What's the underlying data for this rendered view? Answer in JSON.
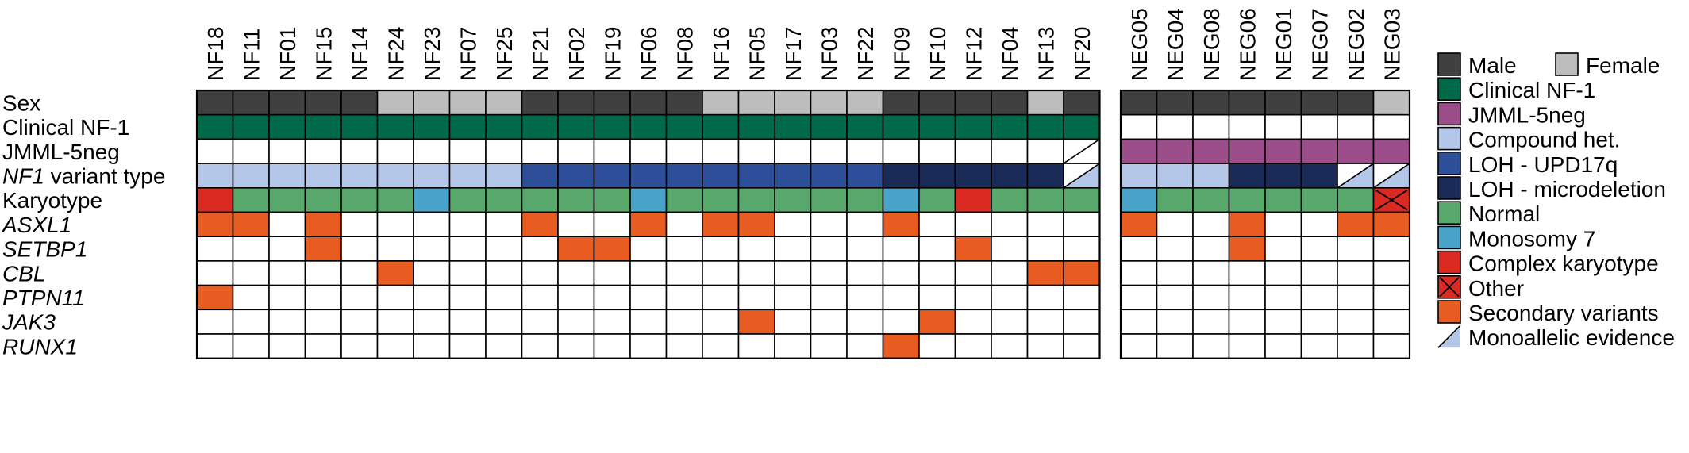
{
  "chart_data": {
    "type": "heatmap",
    "colors": {
      "male": "#404040",
      "female": "#bdbdbd",
      "clinical_nf1": "#006a48",
      "jmml_5neg": "#9c4e8a",
      "compound_het": "#b4c7e9",
      "loh_upd17q": "#2d4f9a",
      "loh_microdeletion": "#1a2b58",
      "normal": "#57a86a",
      "monosomy7": "#4aa3c9",
      "complex_karyotype": "#da2a22",
      "other": "#da2a22",
      "secondary": "#e85c22",
      "empty": "#ffffff"
    },
    "groups": [
      {
        "columns": [
          "NF18",
          "NF11",
          "NF01",
          "NF15",
          "NF14",
          "NF24",
          "NF23",
          "NF07",
          "NF25",
          "NF21",
          "NF02",
          "NF19",
          "NF06",
          "NF08",
          "NF16",
          "NF05",
          "NF17",
          "NF03",
          "NF22",
          "NF09",
          "NF10",
          "NF12",
          "NF04",
          "NF13",
          "NF20"
        ]
      },
      {
        "columns": [
          "NEG05",
          "NEG04",
          "NEG08",
          "NEG06",
          "NEG01",
          "NEG07",
          "NEG02",
          "NEG03"
        ]
      }
    ],
    "rows": [
      {
        "label": "Sex",
        "italic_part": "",
        "rest": "",
        "cells": [
          [
            "male",
            "male",
            "male",
            "male",
            "male",
            "female",
            "female",
            "female",
            "female",
            "male",
            "male",
            "male",
            "male",
            "male",
            "female",
            "female",
            "female",
            "female",
            "female",
            "male",
            "male",
            "male",
            "male",
            "female",
            "male"
          ],
          [
            "male",
            "male",
            "male",
            "male",
            "male",
            "male",
            "male",
            "female"
          ]
        ]
      },
      {
        "label": "Clinical NF-1",
        "italic_part": "",
        "rest": "",
        "cells": [
          [
            "clinical_nf1",
            "clinical_nf1",
            "clinical_nf1",
            "clinical_nf1",
            "clinical_nf1",
            "clinical_nf1",
            "clinical_nf1",
            "clinical_nf1",
            "clinical_nf1",
            "clinical_nf1",
            "clinical_nf1",
            "clinical_nf1",
            "clinical_nf1",
            "clinical_nf1",
            "clinical_nf1",
            "clinical_nf1",
            "clinical_nf1",
            "clinical_nf1",
            "clinical_nf1",
            "clinical_nf1",
            "clinical_nf1",
            "clinical_nf1",
            "clinical_nf1",
            "clinical_nf1",
            "clinical_nf1"
          ],
          [
            "empty",
            "empty",
            "empty",
            "empty",
            "empty",
            "empty",
            "empty",
            "empty"
          ]
        ]
      },
      {
        "label": "JMML-5neg",
        "italic_part": "",
        "rest": "",
        "cells": [
          [
            "empty",
            "empty",
            "empty",
            "empty",
            "empty",
            "empty",
            "empty",
            "empty",
            "empty",
            "empty",
            "empty",
            "empty",
            "empty",
            "empty",
            "empty",
            "empty",
            "empty",
            "empty",
            "empty",
            "empty",
            "empty",
            "empty",
            "empty",
            "empty",
            "empty|monoallelic"
          ],
          [
            "jmml_5neg",
            "jmml_5neg",
            "jmml_5neg",
            "jmml_5neg",
            "jmml_5neg",
            "jmml_5neg",
            "jmml_5neg",
            "jmml_5neg"
          ]
        ]
      },
      {
        "label": "",
        "italic_part": "NF1",
        "rest": " variant type",
        "cells": [
          [
            "compound_het",
            "compound_het",
            "compound_het",
            "compound_het",
            "compound_het",
            "compound_het",
            "compound_het",
            "compound_het",
            "compound_het",
            "loh_upd17q",
            "loh_upd17q",
            "loh_upd17q",
            "loh_upd17q",
            "loh_upd17q",
            "loh_upd17q",
            "loh_upd17q",
            "loh_upd17q",
            "loh_upd17q",
            "loh_upd17q",
            "loh_microdeletion",
            "loh_microdeletion",
            "loh_microdeletion",
            "loh_microdeletion",
            "loh_microdeletion",
            "compound_het|monoallelic"
          ],
          [
            "compound_het",
            "compound_het",
            "compound_het",
            "loh_microdeletion",
            "loh_microdeletion",
            "loh_microdeletion",
            "compound_het|monoallelic",
            "compound_het|monoallelic"
          ]
        ]
      },
      {
        "label": "Karyotype",
        "italic_part": "",
        "rest": "",
        "cells": [
          [
            "complex_karyotype",
            "normal",
            "normal",
            "normal",
            "normal",
            "normal",
            "monosomy7",
            "normal",
            "normal",
            "normal",
            "normal",
            "normal",
            "monosomy7",
            "normal",
            "normal",
            "normal",
            "normal",
            "normal",
            "normal",
            "monosomy7",
            "normal",
            "complex_karyotype",
            "normal",
            "normal",
            "normal"
          ],
          [
            "monosomy7",
            "normal",
            "normal",
            "normal",
            "normal",
            "normal",
            "normal",
            "other"
          ]
        ]
      },
      {
        "label": "",
        "italic_part": "ASXL1",
        "rest": "",
        "cells": [
          [
            "secondary",
            "secondary",
            "empty",
            "secondary",
            "empty",
            "empty",
            "empty",
            "empty",
            "empty",
            "secondary",
            "empty",
            "empty",
            "secondary",
            "empty",
            "secondary",
            "secondary",
            "empty",
            "empty",
            "empty",
            "secondary",
            "empty",
            "empty",
            "empty",
            "empty",
            "empty"
          ],
          [
            "secondary",
            "empty",
            "empty",
            "secondary",
            "empty",
            "empty",
            "secondary",
            "secondary"
          ]
        ]
      },
      {
        "label": "",
        "italic_part": "SETBP1",
        "rest": "",
        "cells": [
          [
            "empty",
            "empty",
            "empty",
            "secondary",
            "empty",
            "empty",
            "empty",
            "empty",
            "empty",
            "empty",
            "secondary",
            "secondary",
            "empty",
            "empty",
            "empty",
            "empty",
            "empty",
            "empty",
            "empty",
            "empty",
            "empty",
            "secondary",
            "empty",
            "empty",
            "empty"
          ],
          [
            "empty",
            "empty",
            "empty",
            "secondary",
            "empty",
            "empty",
            "empty",
            "empty"
          ]
        ]
      },
      {
        "label": "",
        "italic_part": "CBL",
        "rest": "",
        "cells": [
          [
            "empty",
            "empty",
            "empty",
            "empty",
            "empty",
            "secondary",
            "empty",
            "empty",
            "empty",
            "empty",
            "empty",
            "empty",
            "empty",
            "empty",
            "empty",
            "empty",
            "empty",
            "empty",
            "empty",
            "empty",
            "empty",
            "empty",
            "empty",
            "secondary",
            "secondary"
          ],
          [
            "empty",
            "empty",
            "empty",
            "empty",
            "empty",
            "empty",
            "empty",
            "empty"
          ]
        ]
      },
      {
        "label": "",
        "italic_part": "PTPN11",
        "rest": "",
        "cells": [
          [
            "secondary",
            "empty",
            "empty",
            "empty",
            "empty",
            "empty",
            "empty",
            "empty",
            "empty",
            "empty",
            "empty",
            "empty",
            "empty",
            "empty",
            "empty",
            "empty",
            "empty",
            "empty",
            "empty",
            "empty",
            "empty",
            "empty",
            "empty",
            "empty",
            "empty"
          ],
          [
            "empty",
            "empty",
            "empty",
            "empty",
            "empty",
            "empty",
            "empty",
            "empty"
          ]
        ]
      },
      {
        "label": "",
        "italic_part": "JAK3",
        "rest": "",
        "cells": [
          [
            "empty",
            "empty",
            "empty",
            "empty",
            "empty",
            "empty",
            "empty",
            "empty",
            "empty",
            "empty",
            "empty",
            "empty",
            "empty",
            "empty",
            "empty",
            "secondary",
            "empty",
            "empty",
            "empty",
            "empty",
            "secondary",
            "empty",
            "empty",
            "empty",
            "empty"
          ],
          [
            "empty",
            "empty",
            "empty",
            "empty",
            "empty",
            "empty",
            "empty",
            "empty"
          ]
        ]
      },
      {
        "label": "",
        "italic_part": "RUNX1",
        "rest": "",
        "cells": [
          [
            "empty",
            "empty",
            "empty",
            "empty",
            "empty",
            "empty",
            "empty",
            "empty",
            "empty",
            "empty",
            "empty",
            "empty",
            "empty",
            "empty",
            "empty",
            "empty",
            "empty",
            "empty",
            "empty",
            "secondary",
            "empty",
            "empty",
            "empty",
            "empty",
            "empty"
          ],
          [
            "empty",
            "empty",
            "empty",
            "empty",
            "empty",
            "empty",
            "empty",
            "empty"
          ]
        ]
      }
    ],
    "legend": [
      {
        "key": "male",
        "label": "Male",
        "second_key": "female",
        "second_label": "Female"
      },
      {
        "key": "clinical_nf1",
        "label": "Clinical NF-1"
      },
      {
        "key": "jmml_5neg",
        "label": "JMML-5neg"
      },
      {
        "key": "compound_het",
        "label": "Compound het."
      },
      {
        "key": "loh_upd17q",
        "label": "LOH - UPD17q"
      },
      {
        "key": "loh_microdeletion",
        "label": "LOH - microdeletion"
      },
      {
        "key": "normal",
        "label": "Normal"
      },
      {
        "key": "monosomy7",
        "label": "Monosomy 7"
      },
      {
        "key": "complex_karyotype",
        "label": "Complex karyotype"
      },
      {
        "key": "other",
        "label": "Other"
      },
      {
        "key": "secondary",
        "label": "Secondary variants"
      },
      {
        "key": "monoallelic",
        "label": "Monoallelic evidence"
      }
    ]
  }
}
